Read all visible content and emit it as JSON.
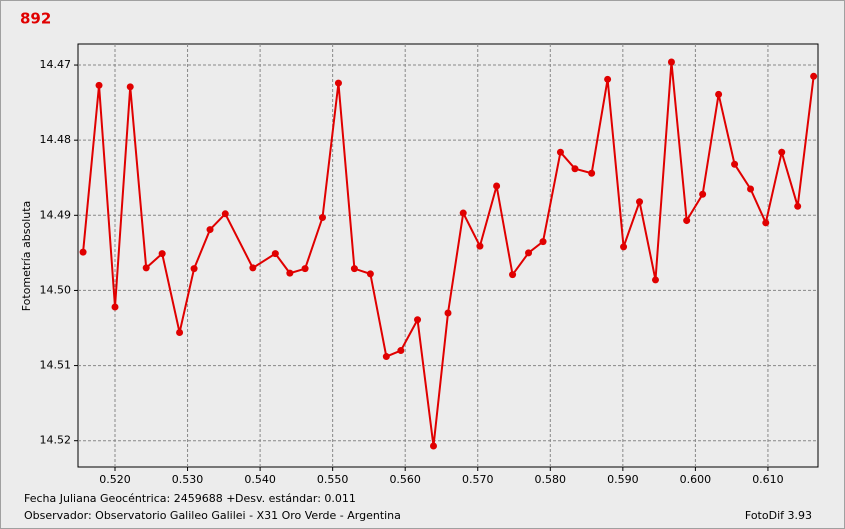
{
  "chart_data": {
    "type": "line",
    "title": "892",
    "y_label": "Fotometría absoluta",
    "annotations": [
      "Fecha Juliana Geocéntrica: 2459688 +",
      "Desv. estándar: 0.011",
      "Observador: Observatorio Galileo Galilei - X31 Oro Verde - Argentina",
      "FotoDif 3.93"
    ],
    "x": [
      0.5156,
      0.5178,
      0.52,
      0.5221,
      0.5243,
      0.5265,
      0.5289,
      0.5309,
      0.5331,
      0.5352,
      0.539,
      0.5421,
      0.5441,
      0.5462,
      0.5486,
      0.5508,
      0.553,
      0.5552,
      0.5574,
      0.5594,
      0.5617,
      0.5639,
      0.5659,
      0.568,
      0.5703,
      0.5726,
      0.5748,
      0.577,
      0.579,
      0.5814,
      0.5834,
      0.5857,
      0.5879,
      0.5901,
      0.5923,
      0.5945,
      0.5967,
      0.5988,
      0.601,
      0.6032,
      0.6054,
      0.6076,
      0.6097,
      0.6119,
      0.6141,
      0.6163
    ],
    "values": [
      14.4949,
      14.4727,
      14.5022,
      14.4729,
      14.497,
      14.4951,
      14.5056,
      14.4971,
      14.4919,
      14.4898,
      14.497,
      14.4951,
      14.4977,
      14.4971,
      14.4903,
      14.4724,
      14.4971,
      14.4978,
      14.5088,
      14.508,
      14.5039,
      14.5207,
      14.503,
      14.4897,
      14.4941,
      14.4861,
      14.4979,
      14.495,
      14.4935,
      14.4816,
      14.4838,
      14.4844,
      14.4719,
      14.4942,
      14.4882,
      14.4986,
      14.4696,
      14.4907,
      14.4872,
      14.4739,
      14.4832,
      14.4865,
      14.491,
      14.4816,
      14.4888,
      14.4715
    ],
    "color": "#e00000",
    "xlim": [
      0.5149,
      0.6169
    ],
    "xticks": [
      {
        "value": 0.52,
        "label": "0.520"
      },
      {
        "value": 0.53,
        "label": "0.530"
      },
      {
        "value": 0.54,
        "label": "0.540"
      },
      {
        "value": 0.55,
        "label": "0.550"
      },
      {
        "value": 0.56,
        "label": "0.560"
      },
      {
        "value": 0.57,
        "label": "0.570"
      },
      {
        "value": 0.58,
        "label": "0.580"
      },
      {
        "value": 0.59,
        "label": "0.590"
      },
      {
        "value": 0.6,
        "label": "0.600"
      },
      {
        "value": 0.61,
        "label": "0.610"
      }
    ],
    "ylim": [
      14.5235,
      14.4672
    ],
    "yticks": [
      14.47,
      14.48,
      14.49,
      {
        "value": 14.5,
        "label": "14.50"
      },
      14.51,
      14.52
    ],
    "grid": true
  }
}
